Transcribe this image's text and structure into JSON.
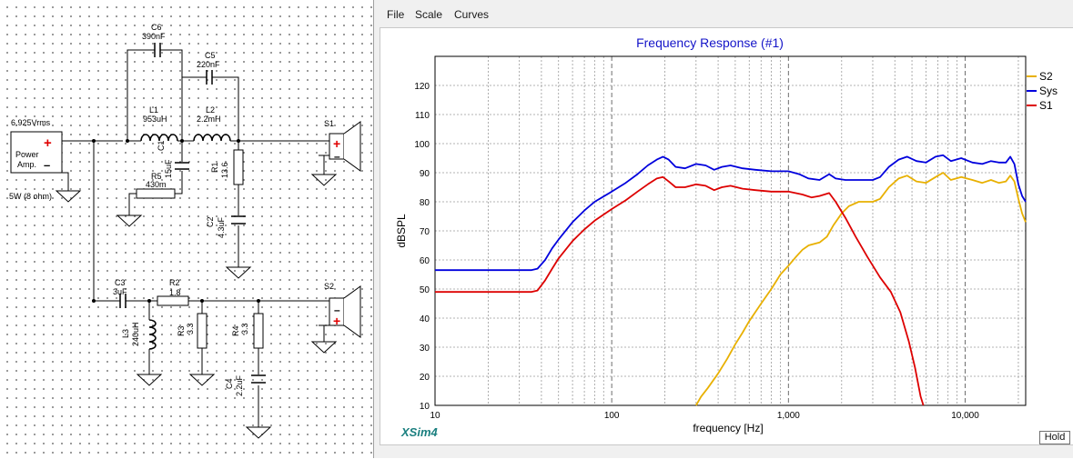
{
  "menu": {
    "file": "File",
    "scale": "Scale",
    "curves": "Curves"
  },
  "hold_label": "Hold",
  "brand": "XSim4",
  "schematic": {
    "source": {
      "voltage": "6.925Vrms",
      "name_line1": "Power",
      "name_line2": "Amp.",
      "spec": "5W (8 ohm)",
      "plus": "+",
      "minus": "–"
    },
    "c6": {
      "name": "C6",
      "value": "390nF"
    },
    "c5": {
      "name": "C5",
      "value": "220nF"
    },
    "l1": {
      "name": "L1",
      "value": "953uH"
    },
    "l2": {
      "name": "L2",
      "value": "2.2mH"
    },
    "c1": {
      "name": "C1",
      "value": "15uF"
    },
    "r5": {
      "name": "R5",
      "value": "430m"
    },
    "r1": {
      "name": "R1",
      "value": "13.6"
    },
    "c2": {
      "name": "C2",
      "value": "4.3uF"
    },
    "c3": {
      "name": "C3",
      "value": "3uF"
    },
    "r2": {
      "name": "R2",
      "value": "1.8"
    },
    "l3": {
      "name": "L3",
      "value": "240uH"
    },
    "r3": {
      "name": "R3",
      "value": "3.3"
    },
    "r4": {
      "name": "R4",
      "value": "3.3"
    },
    "c4": {
      "name": "C4",
      "value": "2.2uF"
    },
    "s1": {
      "name": "S1",
      "plus": "+",
      "minus": "–"
    },
    "s2": {
      "name": "S2",
      "plus": "+",
      "minus": "–"
    }
  },
  "colors": {
    "s2": "#e8b000",
    "sys": "#0000dd",
    "s1": "#dd0000",
    "title": "#1414c8",
    "brand": "#1a7f7f"
  },
  "chart_data": {
    "type": "line",
    "title": "Frequency Response (#1)",
    "xlabel": "frequency [Hz]",
    "ylabel": "dBSPL",
    "x_scale": "log",
    "xlim": [
      10,
      22000
    ],
    "ylim": [
      10,
      130
    ],
    "x_ticks": [
      {
        "v": 10,
        "label": "10"
      },
      {
        "v": 100,
        "label": "100"
      },
      {
        "v": 1000,
        "label": "1,000"
      },
      {
        "v": 10000,
        "label": "10,000"
      }
    ],
    "y_ticks": [
      10,
      20,
      30,
      40,
      50,
      60,
      70,
      80,
      90,
      100,
      110,
      120
    ],
    "grid": true,
    "legend_position": "right",
    "series": [
      {
        "name": "S2",
        "color": "#e8b000",
        "points": [
          [
            300,
            10
          ],
          [
            320,
            13
          ],
          [
            350,
            16
          ],
          [
            400,
            21
          ],
          [
            450,
            26
          ],
          [
            500,
            31
          ],
          [
            550,
            35
          ],
          [
            600,
            39
          ],
          [
            700,
            45
          ],
          [
            800,
            50
          ],
          [
            900,
            55
          ],
          [
            1000,
            58
          ],
          [
            1100,
            61
          ],
          [
            1200,
            63.5
          ],
          [
            1300,
            65
          ],
          [
            1500,
            66
          ],
          [
            1650,
            68
          ],
          [
            1800,
            72
          ],
          [
            2000,
            76
          ],
          [
            2200,
            78.5
          ],
          [
            2500,
            80
          ],
          [
            3000,
            80
          ],
          [
            3300,
            81
          ],
          [
            3700,
            85
          ],
          [
            4200,
            88
          ],
          [
            4700,
            89
          ],
          [
            5300,
            87
          ],
          [
            6000,
            86.5
          ],
          [
            6800,
            88.5
          ],
          [
            7500,
            90
          ],
          [
            8300,
            87.5
          ],
          [
            9500,
            88.5
          ],
          [
            11000,
            87.5
          ],
          [
            12500,
            86.5
          ],
          [
            14000,
            87.5
          ],
          [
            15500,
            86.5
          ],
          [
            17000,
            87
          ],
          [
            18000,
            89
          ],
          [
            19000,
            87
          ],
          [
            20000,
            81
          ],
          [
            21000,
            76
          ],
          [
            22000,
            73
          ]
        ]
      },
      {
        "name": "Sys",
        "color": "#0000dd",
        "points": [
          [
            10,
            56.5
          ],
          [
            20,
            56.5
          ],
          [
            35,
            56.5
          ],
          [
            38,
            57
          ],
          [
            42,
            60
          ],
          [
            46,
            64
          ],
          [
            50,
            67
          ],
          [
            60,
            73
          ],
          [
            70,
            77
          ],
          [
            80,
            80
          ],
          [
            100,
            83.5
          ],
          [
            120,
            86.5
          ],
          [
            140,
            89.5
          ],
          [
            160,
            92.5
          ],
          [
            180,
            94.5
          ],
          [
            195,
            95.5
          ],
          [
            210,
            94.5
          ],
          [
            230,
            92
          ],
          [
            260,
            91.5
          ],
          [
            300,
            93
          ],
          [
            340,
            92.5
          ],
          [
            380,
            91
          ],
          [
            420,
            92
          ],
          [
            470,
            92.5
          ],
          [
            550,
            91.5
          ],
          [
            650,
            91
          ],
          [
            800,
            90.5
          ],
          [
            1000,
            90.5
          ],
          [
            1150,
            89.5
          ],
          [
            1300,
            88
          ],
          [
            1500,
            87.5
          ],
          [
            1700,
            89.5
          ],
          [
            1850,
            88
          ],
          [
            2100,
            87.5
          ],
          [
            2600,
            87.5
          ],
          [
            3000,
            87.5
          ],
          [
            3300,
            88.5
          ],
          [
            3700,
            92
          ],
          [
            4200,
            94.5
          ],
          [
            4700,
            95.5
          ],
          [
            5300,
            94
          ],
          [
            6000,
            93.5
          ],
          [
            6800,
            95.5
          ],
          [
            7500,
            96
          ],
          [
            8300,
            94
          ],
          [
            9500,
            95
          ],
          [
            11000,
            93.5
          ],
          [
            12500,
            93
          ],
          [
            14000,
            94
          ],
          [
            15500,
            93.5
          ],
          [
            17000,
            93.5
          ],
          [
            18000,
            95.5
          ],
          [
            19000,
            93
          ],
          [
            20000,
            86
          ],
          [
            21000,
            82
          ],
          [
            22000,
            80
          ]
        ]
      },
      {
        "name": "S1",
        "color": "#dd0000",
        "points": [
          [
            10,
            49
          ],
          [
            20,
            49
          ],
          [
            35,
            49
          ],
          [
            38,
            49.5
          ],
          [
            42,
            53
          ],
          [
            46,
            57
          ],
          [
            50,
            60.5
          ],
          [
            60,
            66.5
          ],
          [
            70,
            70.5
          ],
          [
            80,
            73.5
          ],
          [
            100,
            77.5
          ],
          [
            120,
            80.5
          ],
          [
            140,
            83.5
          ],
          [
            160,
            86
          ],
          [
            180,
            88
          ],
          [
            195,
            88.5
          ],
          [
            210,
            87
          ],
          [
            230,
            85
          ],
          [
            260,
            85
          ],
          [
            300,
            86
          ],
          [
            340,
            85.5
          ],
          [
            380,
            84
          ],
          [
            420,
            85
          ],
          [
            470,
            85.5
          ],
          [
            550,
            84.5
          ],
          [
            650,
            84
          ],
          [
            800,
            83.5
          ],
          [
            1000,
            83.5
          ],
          [
            1200,
            82.5
          ],
          [
            1350,
            81.5
          ],
          [
            1500,
            82
          ],
          [
            1700,
            83
          ],
          [
            1850,
            80
          ],
          [
            2100,
            74.5
          ],
          [
            2400,
            68
          ],
          [
            2800,
            61
          ],
          [
            3300,
            54
          ],
          [
            3800,
            49
          ],
          [
            4300,
            42
          ],
          [
            4800,
            32
          ],
          [
            5200,
            23
          ],
          [
            5600,
            13
          ],
          [
            5800,
            10
          ]
        ]
      }
    ]
  }
}
